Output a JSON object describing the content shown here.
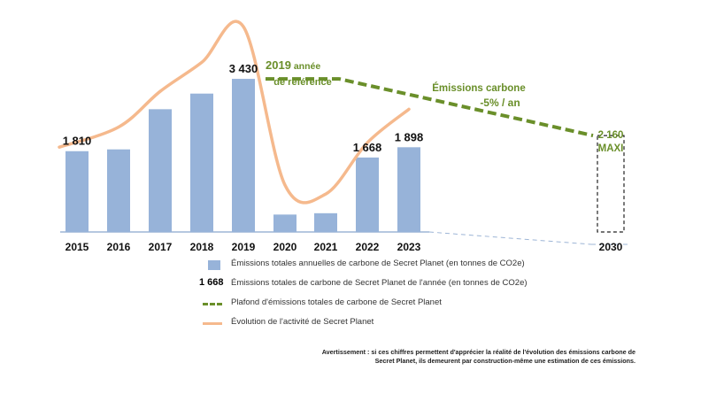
{
  "chart_data": {
    "type": "bar",
    "categories": [
      "2015",
      "2016",
      "2017",
      "2018",
      "2019",
      "2020",
      "2021",
      "2022",
      "2023",
      "2030"
    ],
    "series": [
      {
        "name": "Émissions totales annuelles de carbone de Secret Planet (en tonnes de CO2e)",
        "values": [
          1810,
          1850,
          2750,
          3100,
          3430,
          390,
          420,
          1668,
          1898,
          null
        ]
      }
    ],
    "data_labels": [
      {
        "category": "2015",
        "text": "1 810"
      },
      {
        "category": "2019",
        "text": "3 430"
      },
      {
        "category": "2022",
        "text": "1 668"
      },
      {
        "category": "2023",
        "text": "1 898"
      }
    ],
    "ceiling": {
      "name": "Plafond d'émissions totales de carbone de Secret Planet",
      "points": [
        {
          "x": "2019",
          "y": 3430
        },
        {
          "x": "2021",
          "y": 3430
        },
        {
          "x": "2030",
          "y": 2160
        }
      ],
      "target_label_line1": "2 160",
      "target_label_line2": "MAXI",
      "reference_label_line1": "2019",
      "reference_label_line1_suffix": " année",
      "reference_label_line2": "de référence",
      "trend_label_line1": "Émissions carbone",
      "trend_label_line2": "-5% / an"
    },
    "activity": {
      "name": "Évolution de l'activité de Secret Planet",
      "points": [
        {
          "x": "2015",
          "y": 1900
        },
        {
          "x": "2016",
          "y": 2350
        },
        {
          "x": "2017",
          "y": 3150
        },
        {
          "x": "2018",
          "y": 3800
        },
        {
          "x": "2019",
          "y": 4600
        },
        {
          "x": "2020",
          "y": 1050
        },
        {
          "x": "2021",
          "y": 850
        },
        {
          "x": "2022",
          "y": 2000
        },
        {
          "x": "2023",
          "y": 2750
        }
      ]
    },
    "ylim": [
      0,
      4800
    ],
    "title": "",
    "xlabel": "",
    "ylabel": ""
  },
  "legend": {
    "bar_label": "Émissions totales annuelles de carbone de Secret Planet (en tonnes de CO2e)",
    "number_sample": "1 668",
    "number_label": "Émissions totales de carbone de Secret Planet de l'année (en tonnes de CO2e)",
    "ceiling_label": "Plafond d'émissions totales de carbone de Secret Planet",
    "activity_label": "Évolution de l'activité de Secret Planet"
  },
  "disclaimer": {
    "line1": "Avertissement : si ces chiffres permettent d'apprécier la réalité de l'évolution des émissions carbone de",
    "line2": "Secret Planet, ils demeurent par construction-même une estimation de ces émissions."
  },
  "colors": {
    "bar": "#97b3d9",
    "ceiling": "#6a8f2a",
    "activity": "#f5b98d",
    "axis": "#9db5d6"
  }
}
